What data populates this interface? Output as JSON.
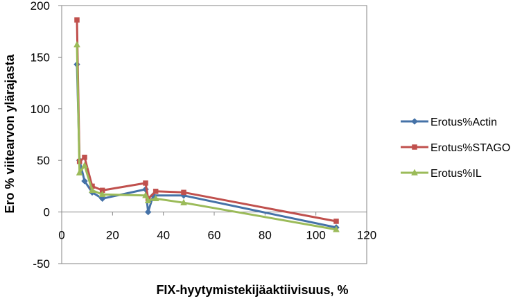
{
  "chart_data": {
    "type": "line",
    "xlabel": "FIX-hyytymistekijäaktiivisuus, %",
    "ylabel": "Ero % viitearvon ylärajasta",
    "xlim": [
      0,
      120
    ],
    "ylim": [
      -50,
      200
    ],
    "x_ticks": [
      0,
      20,
      40,
      60,
      80,
      100,
      120
    ],
    "y_ticks": [
      -50,
      0,
      50,
      100,
      150,
      200
    ],
    "grid": "none",
    "legend_position": "right",
    "series": [
      {
        "name": "Erotus%Actin",
        "color": "#4572A7",
        "marker": "diamond",
        "points": [
          [
            6,
            143
          ],
          [
            7,
            50
          ],
          [
            9,
            30
          ],
          [
            12,
            19
          ],
          [
            16,
            13
          ],
          [
            33,
            22
          ],
          [
            34,
            0
          ],
          [
            36,
            16
          ],
          [
            48,
            16
          ],
          [
            108,
            -15
          ]
        ]
      },
      {
        "name": "Erotus%STAGO",
        "color": "#C0504D",
        "marker": "square",
        "points": [
          [
            6,
            186
          ],
          [
            7,
            49
          ],
          [
            9,
            53
          ],
          [
            12,
            25
          ],
          [
            16,
            21
          ],
          [
            33,
            28
          ],
          [
            34,
            13
          ],
          [
            37,
            20
          ],
          [
            48,
            19
          ],
          [
            108,
            -9
          ]
        ]
      },
      {
        "name": "Erotus%IL",
        "color": "#9BBB59",
        "marker": "triangle",
        "points": [
          [
            6,
            162
          ],
          [
            7,
            38
          ],
          [
            9,
            45
          ],
          [
            12,
            21
          ],
          [
            16,
            17
          ],
          [
            33,
            16
          ],
          [
            34,
            11
          ],
          [
            37,
            13
          ],
          [
            48,
            9
          ],
          [
            108,
            -17
          ]
        ]
      }
    ]
  }
}
